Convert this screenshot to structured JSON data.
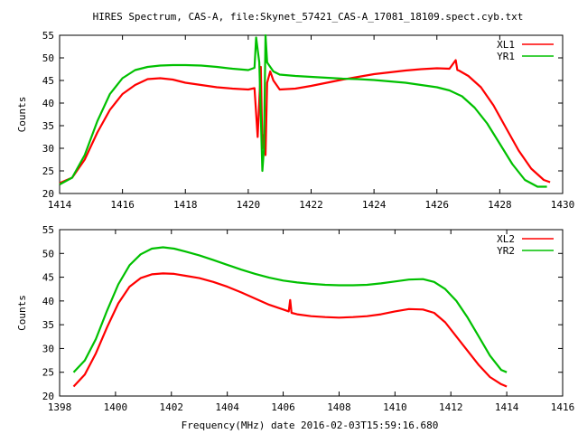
{
  "page": {
    "title": "HIRES Spectrum, CAS-A, file:Skynet_57421_CAS-A_17081_18109.spect.cyb.txt",
    "xlabel": "Frequency(MHz) date 2016-02-03T15:59:16.680"
  },
  "chart_data": [
    {
      "type": "line",
      "xlim": [
        1414,
        1430
      ],
      "ylim": [
        20,
        55
      ],
      "xticks": [
        1414,
        1416,
        1418,
        1420,
        1422,
        1424,
        1426,
        1428,
        1430
      ],
      "yticks": [
        20,
        25,
        30,
        35,
        40,
        45,
        50,
        55
      ],
      "ylabel": "Counts",
      "grid": false,
      "legend": "top-right",
      "series": [
        {
          "name": "XL1",
          "color": "#ff0000",
          "x": [
            1414,
            1414.4,
            1414.8,
            1415.2,
            1415.6,
            1416.0,
            1416.4,
            1416.8,
            1417.2,
            1417.6,
            1418.0,
            1418.5,
            1419.0,
            1419.5,
            1420.0,
            1420.2,
            1420.3,
            1420.4,
            1420.45,
            1420.5,
            1420.55,
            1420.6,
            1420.7,
            1420.8,
            1421.0,
            1421.5,
            1422.0,
            1422.5,
            1423.0,
            1423.5,
            1424.0,
            1424.5,
            1425.0,
            1425.5,
            1426.0,
            1426.4,
            1426.6,
            1426.65,
            1426.7,
            1427.0,
            1427.4,
            1427.8,
            1428.2,
            1428.6,
            1429.0,
            1429.4,
            1429.6
          ],
          "y": [
            22.3,
            23.5,
            27.5,
            33.5,
            38.5,
            42.0,
            44.0,
            45.3,
            45.5,
            45.2,
            44.5,
            44.0,
            43.5,
            43.2,
            43.0,
            43.3,
            32.5,
            48.0,
            30.0,
            33.0,
            28.5,
            44.5,
            47.0,
            45.0,
            43.0,
            43.2,
            43.8,
            44.5,
            45.2,
            45.8,
            46.4,
            46.8,
            47.2,
            47.5,
            47.7,
            47.6,
            49.5,
            47.3,
            47.2,
            46.0,
            43.5,
            39.5,
            34.5,
            29.5,
            25.5,
            23.0,
            22.5
          ]
        },
        {
          "name": "YR1",
          "color": "#00c000",
          "x": [
            1414,
            1414.4,
            1414.8,
            1415.2,
            1415.6,
            1416.0,
            1416.4,
            1416.8,
            1417.2,
            1417.6,
            1418.0,
            1418.5,
            1419.0,
            1419.5,
            1420.0,
            1420.2,
            1420.25,
            1420.35,
            1420.45,
            1420.5,
            1420.55,
            1420.6,
            1420.65,
            1420.8,
            1421.0,
            1421.5,
            1422.0,
            1422.5,
            1423.0,
            1423.5,
            1424.0,
            1424.5,
            1425.0,
            1425.5,
            1426.0,
            1426.4,
            1426.8,
            1427.2,
            1427.6,
            1428.0,
            1428.4,
            1428.8,
            1429.2,
            1429.5
          ],
          "y": [
            22.0,
            23.5,
            28.5,
            36.0,
            42.0,
            45.5,
            47.3,
            48.0,
            48.3,
            48.4,
            48.4,
            48.3,
            48.0,
            47.6,
            47.3,
            47.8,
            54.5,
            49.0,
            25.0,
            30.0,
            55.0,
            49.0,
            48.5,
            47.0,
            46.3,
            46.0,
            45.8,
            45.6,
            45.4,
            45.3,
            45.1,
            44.8,
            44.5,
            44.0,
            43.5,
            42.8,
            41.5,
            39.0,
            35.5,
            31.0,
            26.5,
            23.0,
            21.5,
            21.5
          ]
        }
      ]
    },
    {
      "type": "line",
      "xlim": [
        1398,
        1416
      ],
      "ylim": [
        20,
        55
      ],
      "xticks": [
        1398,
        1400,
        1402,
        1404,
        1406,
        1408,
        1410,
        1412,
        1414,
        1416
      ],
      "yticks": [
        20,
        25,
        30,
        35,
        40,
        45,
        50,
        55
      ],
      "ylabel": "Counts",
      "grid": false,
      "legend": "top-right",
      "series": [
        {
          "name": "XL2",
          "color": "#ff0000",
          "x": [
            1398.5,
            1398.9,
            1399.3,
            1399.7,
            1400.1,
            1400.5,
            1400.9,
            1401.3,
            1401.7,
            1402.1,
            1402.5,
            1403.0,
            1403.5,
            1404.0,
            1404.5,
            1405.0,
            1405.5,
            1406.0,
            1406.2,
            1406.25,
            1406.3,
            1406.5,
            1407.0,
            1407.5,
            1408.0,
            1408.5,
            1409.0,
            1409.5,
            1410.0,
            1410.5,
            1411.0,
            1411.4,
            1411.8,
            1412.2,
            1412.6,
            1413.0,
            1413.4,
            1413.8,
            1414.0
          ],
          "y": [
            22.0,
            24.5,
            29.0,
            34.5,
            39.5,
            43.0,
            44.8,
            45.6,
            45.8,
            45.7,
            45.3,
            44.8,
            44.0,
            43.0,
            41.8,
            40.5,
            39.2,
            38.2,
            37.8,
            40.2,
            37.5,
            37.2,
            36.8,
            36.6,
            36.5,
            36.6,
            36.8,
            37.2,
            37.8,
            38.3,
            38.2,
            37.5,
            35.5,
            32.5,
            29.5,
            26.5,
            24.0,
            22.5,
            22.0
          ]
        },
        {
          "name": "YR2",
          "color": "#00c000",
          "x": [
            1398.5,
            1398.9,
            1399.3,
            1399.7,
            1400.1,
            1400.5,
            1400.9,
            1401.3,
            1401.7,
            1402.1,
            1402.5,
            1403.0,
            1403.5,
            1404.0,
            1404.5,
            1405.0,
            1405.5,
            1406.0,
            1406.5,
            1407.0,
            1407.5,
            1408.0,
            1408.5,
            1409.0,
            1409.5,
            1410.0,
            1410.5,
            1411.0,
            1411.4,
            1411.8,
            1412.2,
            1412.6,
            1413.0,
            1413.4,
            1413.8,
            1414.0
          ],
          "y": [
            25.0,
            27.5,
            32.0,
            38.0,
            43.5,
            47.5,
            49.8,
            51.0,
            51.3,
            51.0,
            50.4,
            49.6,
            48.6,
            47.6,
            46.6,
            45.7,
            44.9,
            44.3,
            43.9,
            43.6,
            43.4,
            43.3,
            43.3,
            43.4,
            43.7,
            44.1,
            44.5,
            44.6,
            44.0,
            42.5,
            40.0,
            36.5,
            32.5,
            28.5,
            25.5,
            25.0
          ]
        }
      ]
    }
  ]
}
